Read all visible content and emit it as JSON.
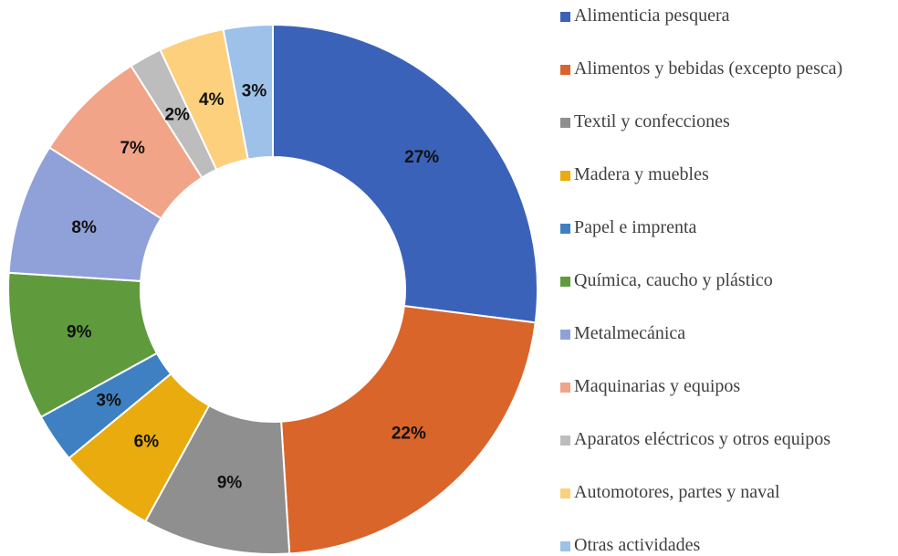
{
  "chart_data": {
    "type": "donut",
    "categories": [
      "Alimenticia pesquera",
      "Alimentos y bebidas (excepto pesca)",
      "Textil y confecciones",
      "Madera y muebles",
      "Papel e imprenta",
      "Química, caucho y plástico",
      "Metalmecánica",
      "Maquinarias y equipos",
      "Aparatos eléctricos y otros equipos",
      "Automotores, partes y naval",
      "Otras actividades"
    ],
    "values": [
      27,
      22,
      9,
      6,
      3,
      9,
      8,
      7,
      2,
      4,
      3
    ],
    "value_labels": [
      "27%",
      "22%",
      "9%",
      "6%",
      "3%",
      "9%",
      "8%",
      "7%",
      "2%",
      "4%",
      "3%"
    ],
    "colors": [
      "#3a62b8",
      "#d9652b",
      "#8f8f8f",
      "#e9ab0e",
      "#3f80c2",
      "#5f9b3d",
      "#8fa1d8",
      "#f2a488",
      "#bdbdbd",
      "#fcd07c",
      "#9dc1e9"
    ],
    "legend": "right"
  }
}
